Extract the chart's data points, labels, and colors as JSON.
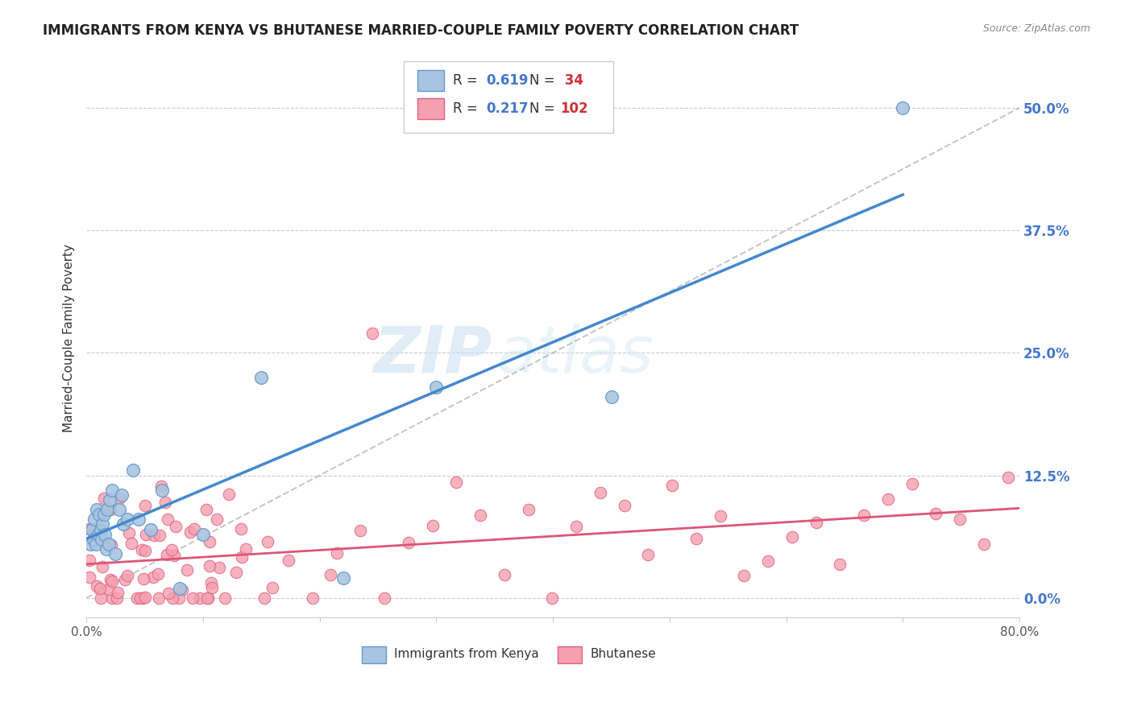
{
  "title": "IMMIGRANTS FROM KENYA VS BHUTANESE MARRIED-COUPLE FAMILY POVERTY CORRELATION CHART",
  "source": "Source: ZipAtlas.com",
  "ylabel": "Married-Couple Family Poverty",
  "xlim": [
    0,
    0.8
  ],
  "ylim": [
    -0.02,
    0.55
  ],
  "xticks": [
    0.0,
    0.1,
    0.2,
    0.3,
    0.4,
    0.5,
    0.6,
    0.7,
    0.8
  ],
  "xticklabels": [
    "0.0%",
    "",
    "",
    "",
    "",
    "",
    "",
    "",
    "80.0%"
  ],
  "ytick_positions": [
    0.0,
    0.125,
    0.25,
    0.375,
    0.5
  ],
  "ytick_labels": [
    "0.0%",
    "12.5%",
    "25.0%",
    "37.5%",
    "50.0%"
  ],
  "kenya_color": "#a8c4e0",
  "kenya_edge": "#6699cc",
  "kenya_line_color": "#4488cc",
  "bhutan_color": "#f4a0b0",
  "bhutan_edge": "#e06080",
  "bhutan_line_color": "#dd5577",
  "kenya_R": "0.619",
  "kenya_N": " 34",
  "bhutan_R": "0.217",
  "bhutan_N": "102",
  "legend_R_color": "#4477cc",
  "legend_N_color": "#cc3333",
  "watermark_zip": "ZIP",
  "watermark_atlas": "atlas",
  "background_color": "#ffffff",
  "grid_color": "#cccccc",
  "diag_color": "#aaaaaa",
  "bottom_legend_kenya": "Immigrants from Kenya",
  "bottom_legend_bhutan": "Bhutanese"
}
